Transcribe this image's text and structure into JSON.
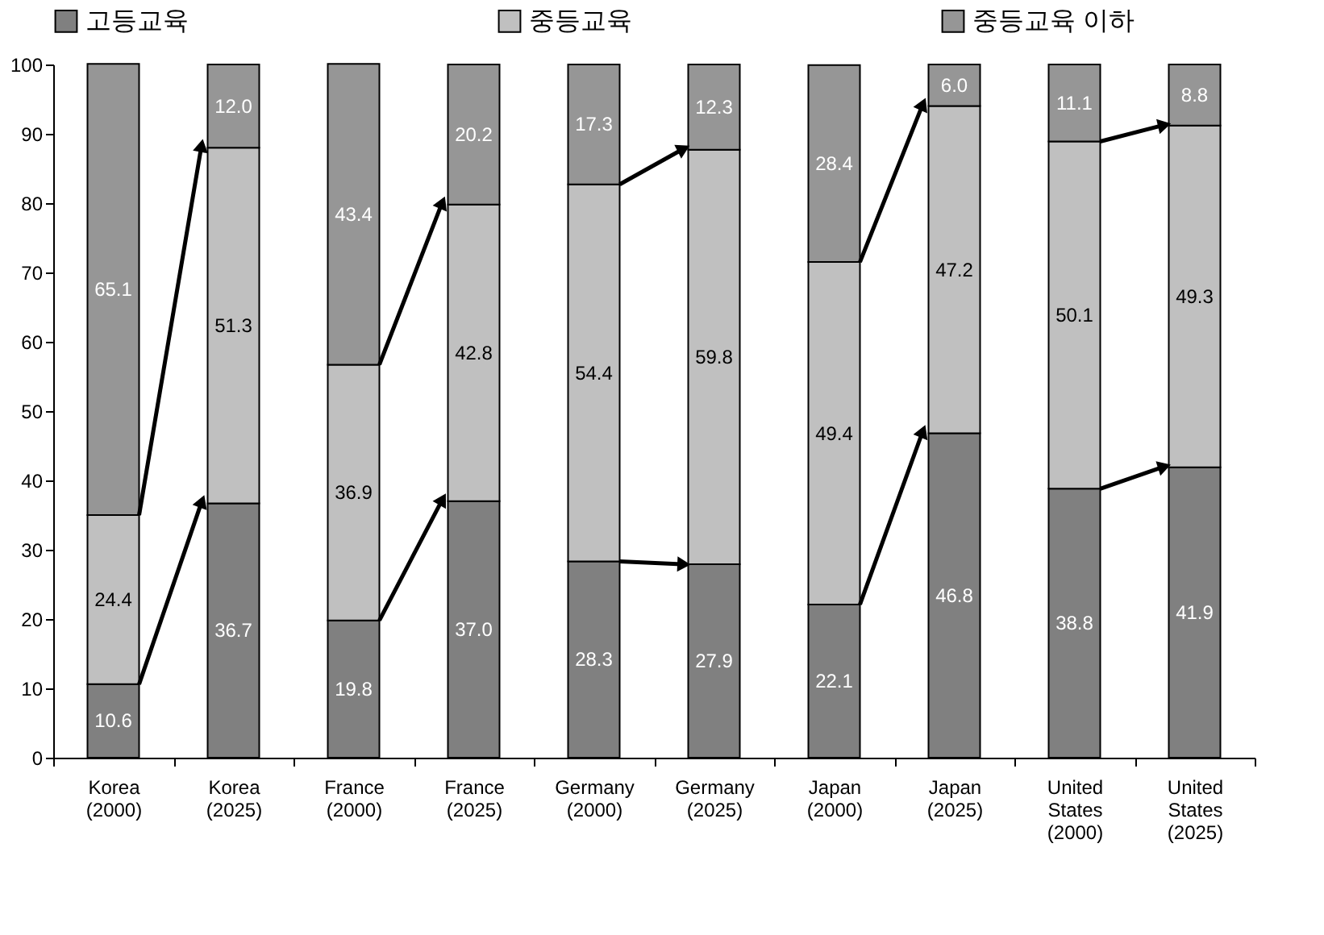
{
  "chart_data": {
    "type": "bar",
    "stacked": true,
    "categories": [
      "Korea\n(2000)",
      "Korea\n(2025)",
      "France\n(2000)",
      "France\n(2025)",
      "Germany\n(2000)",
      "Germany\n(2025)",
      "Japan\n(2000)",
      "Japan\n(2025)",
      "United\nStates\n(2000)",
      "United\nStates\n(2025)"
    ],
    "series": [
      {
        "name": "고등교육",
        "color": "#808080",
        "values": [
          10.6,
          36.7,
          19.8,
          37.0,
          28.3,
          27.9,
          22.1,
          46.8,
          38.8,
          41.9
        ],
        "value_labels": [
          "10.6",
          "36.7",
          "19.8",
          "37.0",
          "28.3",
          "27.9",
          "22.1",
          "46.8",
          "38.8",
          "41.9"
        ]
      },
      {
        "name": "중등교육",
        "color": "#c0c0c0",
        "values": [
          24.4,
          51.3,
          36.9,
          42.8,
          54.4,
          59.8,
          49.4,
          47.2,
          50.1,
          49.3
        ],
        "value_labels": [
          "24.4",
          "51.3",
          "36.9",
          "42.8",
          "54.4",
          "59.8",
          "49.4",
          "47.2",
          "50.1",
          "49.3"
        ]
      },
      {
        "name": "중등교육 이하",
        "color": "#969696",
        "values": [
          65.1,
          12.0,
          43.4,
          20.2,
          17.3,
          12.3,
          28.4,
          6.0,
          11.1,
          8.8
        ],
        "value_labels": [
          "65.1",
          "12.0",
          "43.4",
          "20.2",
          "17.3",
          "12.3",
          "28.4",
          "6.0",
          "11.1",
          "8.8"
        ]
      }
    ],
    "ylim": [
      0,
      100
    ],
    "yticks": [
      0,
      10,
      20,
      30,
      40,
      50,
      60,
      70,
      80,
      90,
      100
    ],
    "legend": "top",
    "grid": false
  }
}
